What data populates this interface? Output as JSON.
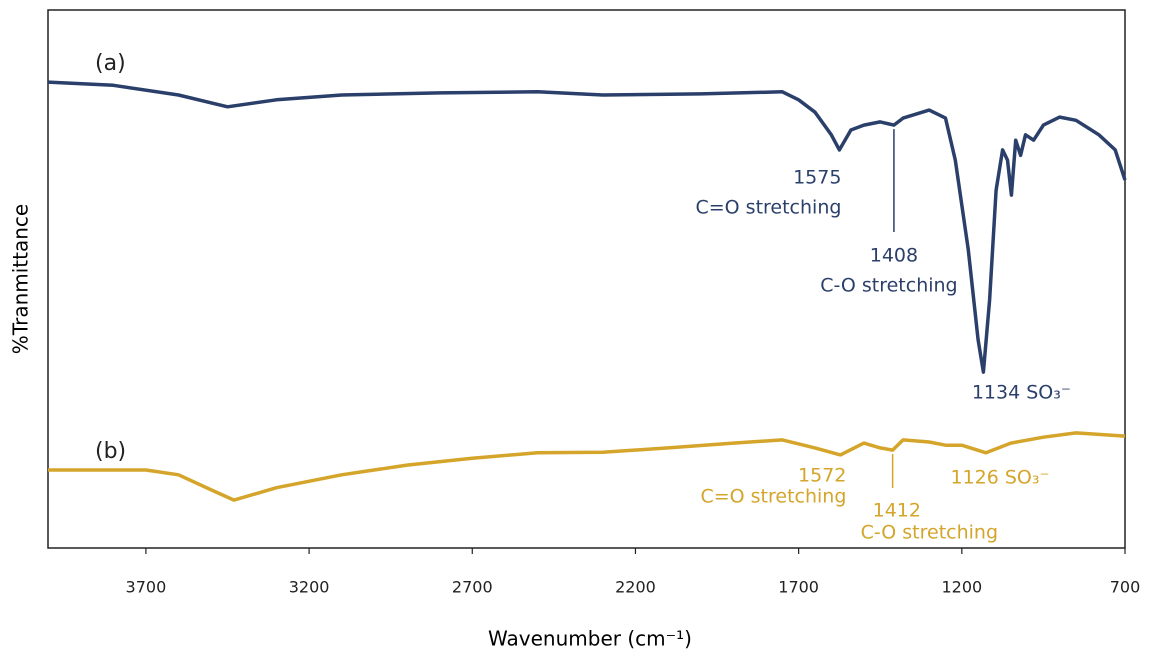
{
  "chart_data": {
    "type": "line",
    "xlabel": "Wavenumber (cm⁻¹)",
    "ylabel": "%Tranmittance",
    "xlim": [
      4000,
      700
    ],
    "ylim": [
      0,
      100
    ],
    "xticks": [
      3700,
      3200,
      2700,
      2200,
      1700,
      1200,
      700
    ],
    "series": [
      {
        "name": "(a)",
        "color": "#2b3f6b",
        "x": [
          4000,
          3800,
          3600,
          3450,
          3300,
          3100,
          2800,
          2500,
          2300,
          2000,
          1750,
          1700,
          1650,
          1600,
          1575,
          1540,
          1500,
          1450,
          1408,
          1380,
          1300,
          1250,
          1220,
          1180,
          1150,
          1134,
          1115,
          1095,
          1075,
          1060,
          1048,
          1035,
          1020,
          1005,
          980,
          950,
          900,
          850,
          780,
          730,
          700
        ],
        "values": [
          86.6,
          86,
          84.2,
          82,
          83.3,
          84.2,
          84.6,
          84.8,
          84.2,
          84.4,
          84.8,
          83.3,
          81,
          76.8,
          74,
          77.7,
          78.6,
          79.2,
          78.6,
          79.9,
          81.4,
          79.9,
          72.1,
          55.4,
          38.7,
          32.7,
          46.1,
          66.5,
          74,
          72.1,
          65.6,
          75.8,
          73,
          76.8,
          75.8,
          78.6,
          80.1,
          79.5,
          76.8,
          74,
          68.4
        ]
      },
      {
        "name": "(b)",
        "color": "#d4a52a",
        "x": [
          4000,
          3700,
          3600,
          3500,
          3430,
          3300,
          3100,
          2900,
          2700,
          2500,
          2300,
          2100,
          1900,
          1750,
          1650,
          1572,
          1500,
          1450,
          1412,
          1380,
          1300,
          1250,
          1200,
          1126,
          1050,
          950,
          850,
          700
        ],
        "values": [
          14.5,
          14.5,
          13.6,
          10.8,
          8.9,
          11.2,
          13.6,
          15.4,
          16.7,
          17.7,
          17.8,
          18.6,
          19.5,
          20.1,
          18.6,
          17.3,
          19.5,
          18.6,
          18.2,
          20.1,
          19.7,
          19.1,
          19.1,
          17.7,
          19.5,
          20.6,
          21.4,
          20.8
        ]
      }
    ],
    "annotations": [
      {
        "series": 0,
        "x": 1575,
        "lines": [
          "1575",
          "C=O stretching"
        ]
      },
      {
        "series": 0,
        "x": 1408,
        "lines": [
          "1408",
          "C-O stretching"
        ]
      },
      {
        "series": 0,
        "x": 1134,
        "lines": [
          "1134 SO₃⁻"
        ]
      },
      {
        "series": 1,
        "x": 1572,
        "lines": [
          "1572",
          "C=O stretching"
        ]
      },
      {
        "series": 1,
        "x": 1412,
        "lines": [
          "1412",
          "C-O stretching"
        ]
      },
      {
        "series": 1,
        "x": 1126,
        "lines": [
          "1126 SO₃⁻"
        ]
      }
    ]
  }
}
